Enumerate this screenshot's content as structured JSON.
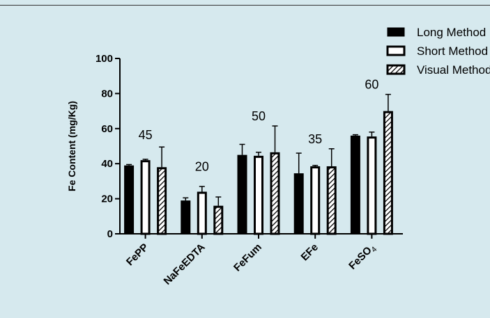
{
  "chart_data": {
    "type": "bar",
    "title": "",
    "xlabel": "",
    "ylabel": "Fe Content (mg/Kg)",
    "ylim": [
      0,
      100
    ],
    "yticks": [
      "0",
      "20",
      "40",
      "60",
      "80",
      "100"
    ],
    "categories": [
      {
        "main": "FePP",
        "sub": ""
      },
      {
        "main": "NaFeEDTA",
        "sub": ""
      },
      {
        "main": "FeFum",
        "sub": ""
      },
      {
        "main": "EFe",
        "sub": ""
      },
      {
        "main": "FeSO",
        "sub": "4"
      }
    ],
    "series": [
      {
        "name": "Long Method",
        "fill": "solid",
        "values": [
          39,
          19,
          45,
          34.5,
          56
        ],
        "errors": [
          0.5,
          1.5,
          6,
          11.5,
          0.5
        ]
      },
      {
        "name": "Short Method",
        "fill": "white",
        "values": [
          42,
          24,
          44.5,
          38.5,
          55.5
        ],
        "errors": [
          0.5,
          3,
          2,
          0.5,
          2.5
        ]
      },
      {
        "name": "Visual Method",
        "fill": "hatched",
        "values": [
          38,
          16,
          46.5,
          38.5,
          70
        ],
        "errors": [
          11.5,
          5,
          15,
          10,
          9.5
        ]
      }
    ],
    "annotations": [
      "45",
      "20",
      "50",
      "35",
      "60"
    ],
    "legend_position": "top-right",
    "grid": false
  },
  "colors": {
    "background": "#d6e9ee",
    "bar_solid": "#000000",
    "bar_white": "#ffffff",
    "stroke": "#000000"
  }
}
